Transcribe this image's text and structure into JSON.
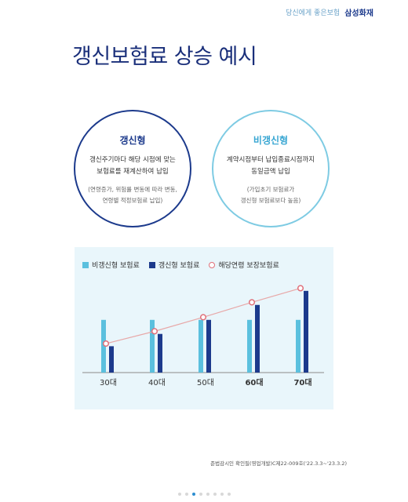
{
  "header": {
    "tagline": "당신에게 좋은보험",
    "brand": "삼성화재"
  },
  "page_title": "갱신보험료 상승 예시",
  "renewal": {
    "title": "갱신형",
    "desc": [
      "갱신주기마다 해당 시점에 맞는",
      "보험료를 재계산하여 납입"
    ],
    "note": [
      "(연령증가, 위험률 변동에 따라 변동,",
      "연령별 적정보험료 납입)"
    ]
  },
  "non_renewal": {
    "title": "비갱신형",
    "desc": [
      "계약시점부터 납입종료시점까지",
      "동일금액 납입"
    ],
    "note": [
      "(가입초기 보험료가",
      "갱신형 보험료보다 높음)"
    ]
  },
  "legend": {
    "non_renewal": "비갱신형 보험료",
    "renewal": "갱신형 보험료",
    "age_premium": "해당연령 보장보험료"
  },
  "colors": {
    "non_renewal_bar": "#5bc0de",
    "renewal_bar": "#1c3a8c",
    "age_line": "#e8a8a8",
    "age_marker": "#e0707a",
    "title": "#1a2f7a"
  },
  "chart_data": {
    "type": "bar",
    "categories": [
      "30대",
      "40대",
      "50대",
      "60대",
      "70대"
    ],
    "series": [
      {
        "name": "비갱신형 보험료",
        "values": [
          60,
          60,
          60,
          60,
          60
        ]
      },
      {
        "name": "갱신형 보험료",
        "values": [
          30,
          44,
          60,
          77,
          93
        ]
      },
      {
        "name": "해당연령 보장보험료",
        "values": [
          33,
          47,
          63,
          80,
          96
        ]
      }
    ],
    "ylim": [
      0,
      100
    ],
    "grid": false,
    "legend_position": "top-left"
  },
  "footnote": "준법감시인 확인필(영업개발)C제22-009호('22.3.3~'23.3.2)",
  "pager": {
    "count": 8,
    "active": 2
  }
}
